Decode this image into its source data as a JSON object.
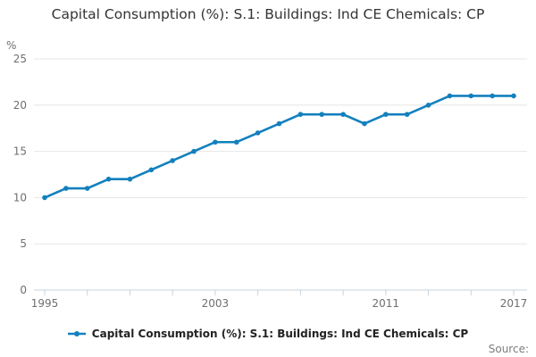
{
  "title": "Capital Consumption (%): S.1: Buildings: Ind CE Chemicals: CP",
  "y_axis_unit": "%",
  "legend": {
    "label": "Capital Consumption (%): S.1: Buildings: Ind CE Chemicals: CP"
  },
  "source_label": "Source:",
  "colors": {
    "line": "#1380be",
    "marker": "#1380be",
    "grid": "#e6e6e6",
    "axis": "#c7d3dd",
    "tick_label": "#6f6f6f",
    "unit_label": "#6f6f6f",
    "title": "#333333",
    "legend_text": "#222222",
    "source": "#7d7d7d"
  },
  "chart_data": {
    "type": "line",
    "title": "Capital Consumption (%): S.1: Buildings: Ind CE Chemicals: CP",
    "xlabel": "",
    "ylabel": "%",
    "ylim": [
      0,
      25
    ],
    "grid": true,
    "legend_position": "bottom",
    "x": [
      1995,
      1996,
      1997,
      1998,
      1999,
      2000,
      2001,
      2002,
      2003,
      2004,
      2005,
      2006,
      2007,
      2008,
      2009,
      2010,
      2011,
      2012,
      2013,
      2014,
      2015,
      2016,
      2017
    ],
    "series": [
      {
        "name": "Capital Consumption (%): S.1: Buildings: Ind CE Chemicals: CP",
        "values": [
          10,
          11,
          11,
          12,
          12,
          13,
          14,
          15,
          16,
          16,
          17,
          18,
          19,
          19,
          19,
          18,
          19,
          19,
          20,
          21,
          21,
          21,
          21
        ]
      }
    ],
    "y_ticks": [
      0,
      5,
      10,
      15,
      20,
      25
    ],
    "y_tick_labels": [
      "0",
      "5",
      "10",
      "15",
      "20",
      "25"
    ],
    "x_tick_label_years": [
      1995,
      2003,
      2011,
      2017
    ],
    "x_tick_labels": [
      "1995",
      "2003",
      "2011",
      "2017"
    ],
    "x_minor_tick_every": 2
  }
}
